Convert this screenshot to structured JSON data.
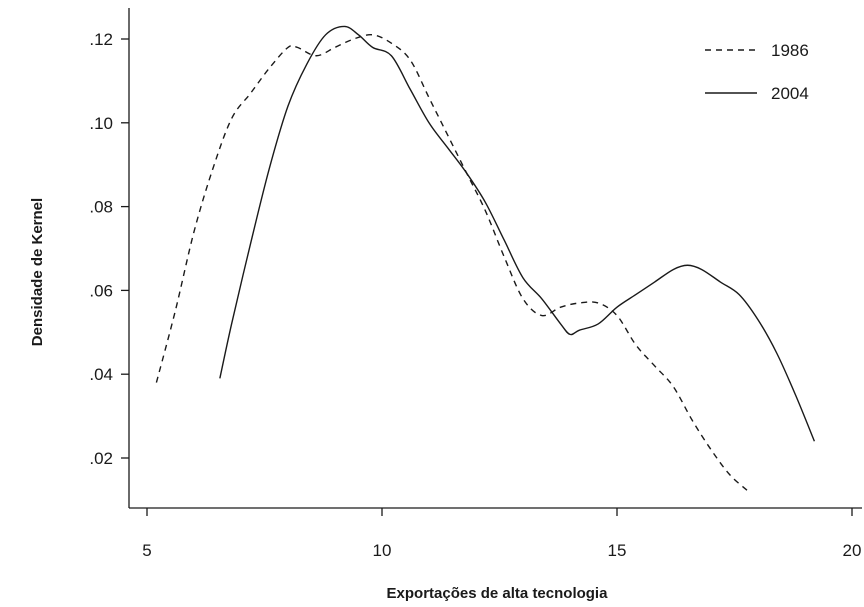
{
  "chart_data": {
    "type": "line",
    "title": "",
    "xlabel": "Exportações de alta tecnologia",
    "ylabel": "Densidade de Kernel",
    "xlim": [
      5,
      20
    ],
    "ylim": [
      0.008,
      0.127
    ],
    "x_ticks": [
      {
        "value": 5,
        "label": "5"
      },
      {
        "value": 10,
        "label": "10"
      },
      {
        "value": 15,
        "label": "15"
      },
      {
        "value": 20,
        "label": "20"
      }
    ],
    "y_ticks": [
      {
        "value": 0.02,
        "label": ".02"
      },
      {
        "value": 0.04,
        "label": ".04"
      },
      {
        "value": 0.06,
        "label": ".06"
      },
      {
        "value": 0.08,
        "label": ".08"
      },
      {
        "value": 0.1,
        "label": ".10"
      },
      {
        "value": 0.12,
        "label": ".12"
      }
    ],
    "legend_position": "top-right",
    "grid": false,
    "series": [
      {
        "name": "1986",
        "style": "dashed",
        "color": "#1a1a1a",
        "points": [
          [
            5.2,
            0.038
          ],
          [
            5.6,
            0.055
          ],
          [
            6.0,
            0.074
          ],
          [
            6.4,
            0.089
          ],
          [
            6.8,
            0.101
          ],
          [
            7.2,
            0.107
          ],
          [
            7.6,
            0.113
          ],
          [
            8.0,
            0.118
          ],
          [
            8.2,
            0.118
          ],
          [
            8.6,
            0.116
          ],
          [
            9.0,
            0.118
          ],
          [
            9.4,
            0.12
          ],
          [
            9.8,
            0.121
          ],
          [
            10.2,
            0.119
          ],
          [
            10.6,
            0.115
          ],
          [
            11.0,
            0.106
          ],
          [
            11.4,
            0.097
          ],
          [
            11.8,
            0.088
          ],
          [
            12.2,
            0.079
          ],
          [
            12.6,
            0.068
          ],
          [
            13.0,
            0.058
          ],
          [
            13.4,
            0.054
          ],
          [
            13.8,
            0.056
          ],
          [
            14.2,
            0.057
          ],
          [
            14.6,
            0.057
          ],
          [
            15.0,
            0.054
          ],
          [
            15.4,
            0.047
          ],
          [
            15.8,
            0.042
          ],
          [
            16.2,
            0.037
          ],
          [
            16.6,
            0.029
          ],
          [
            17.0,
            0.022
          ],
          [
            17.4,
            0.016
          ],
          [
            17.8,
            0.012
          ]
        ]
      },
      {
        "name": "2004",
        "style": "solid",
        "color": "#1a1a1a",
        "points": [
          [
            6.55,
            0.039
          ],
          [
            6.8,
            0.052
          ],
          [
            7.2,
            0.071
          ],
          [
            7.6,
            0.089
          ],
          [
            8.0,
            0.104
          ],
          [
            8.4,
            0.114
          ],
          [
            8.8,
            0.121
          ],
          [
            9.2,
            0.123
          ],
          [
            9.5,
            0.121
          ],
          [
            9.8,
            0.118
          ],
          [
            10.2,
            0.116
          ],
          [
            10.6,
            0.108
          ],
          [
            11.0,
            0.1
          ],
          [
            11.4,
            0.094
          ],
          [
            11.8,
            0.088
          ],
          [
            12.2,
            0.081
          ],
          [
            12.6,
            0.072
          ],
          [
            13.0,
            0.063
          ],
          [
            13.4,
            0.058
          ],
          [
            13.8,
            0.052
          ],
          [
            14.0,
            0.0495
          ],
          [
            14.2,
            0.0505
          ],
          [
            14.6,
            0.052
          ],
          [
            15.0,
            0.056
          ],
          [
            15.4,
            0.059
          ],
          [
            15.8,
            0.062
          ],
          [
            16.2,
            0.065
          ],
          [
            16.5,
            0.066
          ],
          [
            16.8,
            0.065
          ],
          [
            17.2,
            0.062
          ],
          [
            17.6,
            0.059
          ],
          [
            18.0,
            0.053
          ],
          [
            18.4,
            0.045
          ],
          [
            18.8,
            0.035
          ],
          [
            19.2,
            0.024
          ]
        ]
      }
    ]
  }
}
